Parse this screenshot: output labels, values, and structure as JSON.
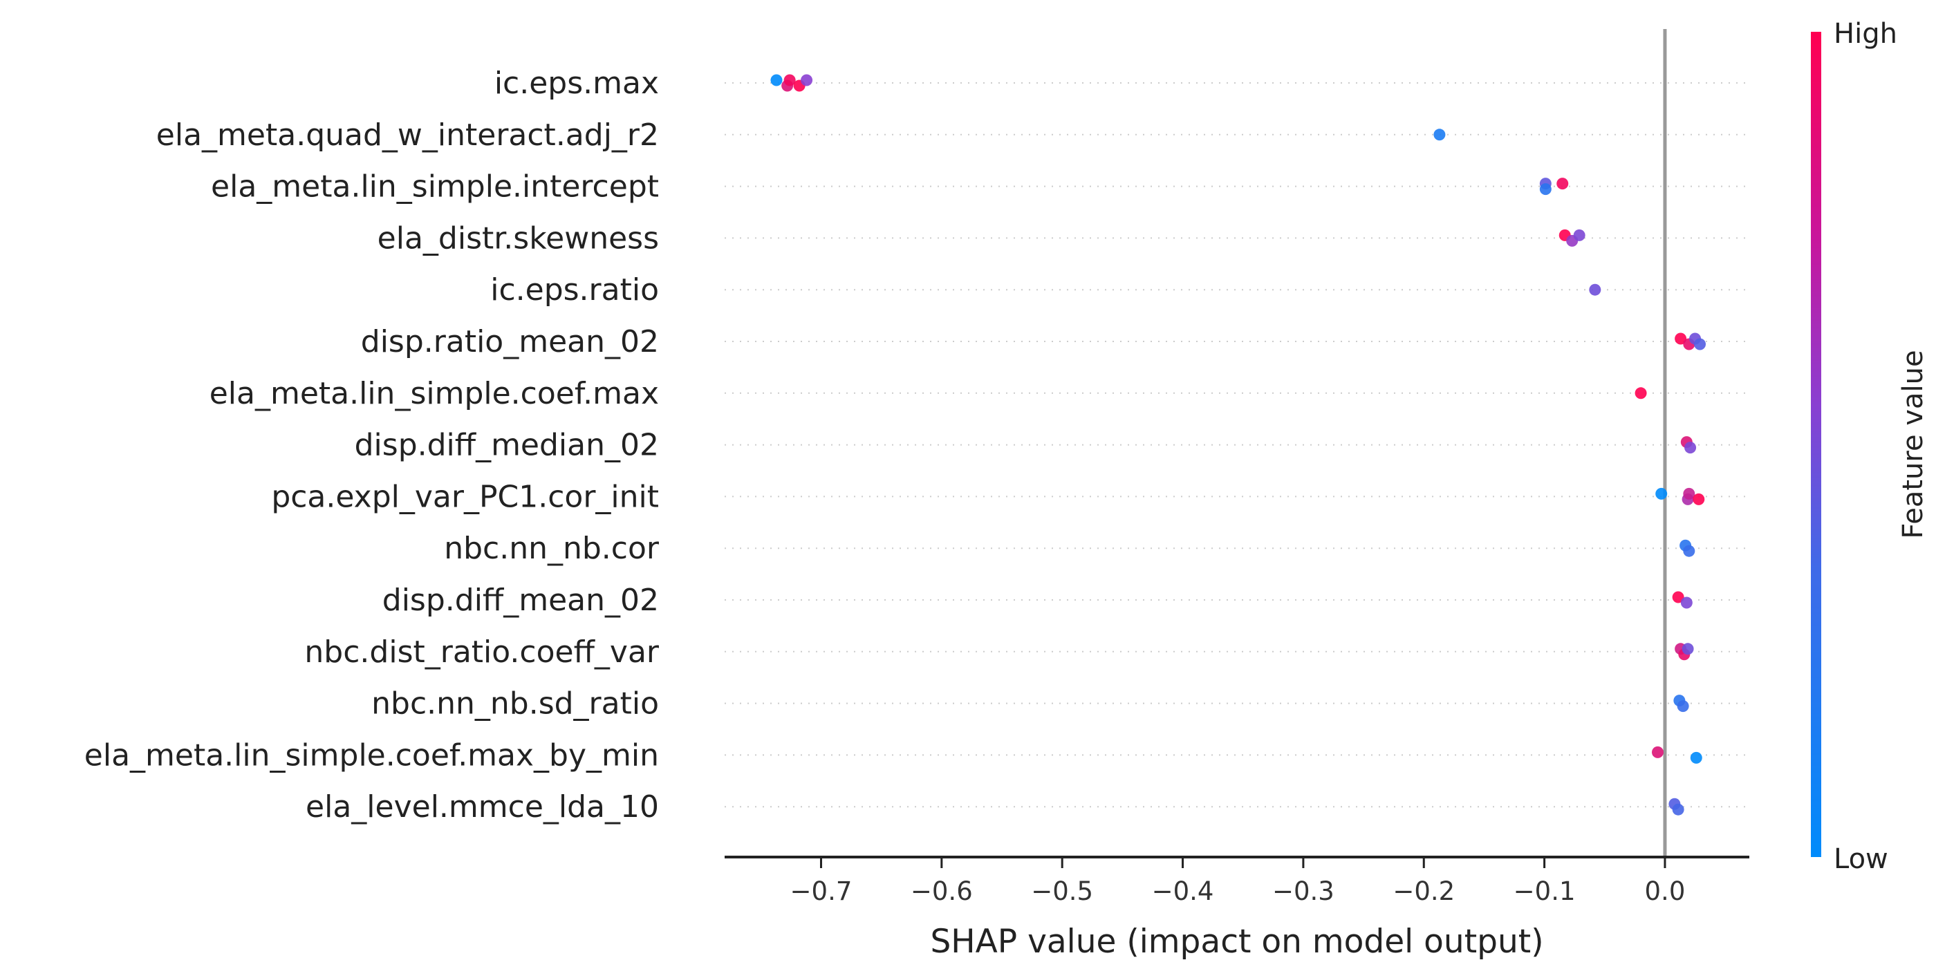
{
  "chart_data": {
    "type": "scatter",
    "xlabel": "SHAP value (impact on model output)",
    "xlim": [
      -0.78,
      0.07
    ],
    "xticks": [
      -0.7,
      -0.6,
      -0.5,
      -0.4,
      -0.3,
      -0.2,
      -0.1,
      0.0
    ],
    "xtick_labels": [
      "−0.7",
      "−0.6",
      "−0.5",
      "−0.4",
      "−0.3",
      "−0.2",
      "−0.1",
      "0.0"
    ],
    "zero_line": 0.0,
    "grid": "dotted horizontal per feature",
    "colorbar": {
      "title": "Feature value",
      "high_label": "High",
      "low_label": "Low",
      "low_color": "#1e88e5",
      "high_color": "#ff0d57",
      "mid_color": "#7b5cd6"
    },
    "features": [
      {
        "name": "ic.eps.max",
        "points": [
          [
            -0.737,
            0.0
          ],
          [
            -0.728,
            0.85
          ],
          [
            -0.726,
            0.95
          ],
          [
            -0.718,
            1.0
          ],
          [
            -0.712,
            0.5
          ]
        ]
      },
      {
        "name": "ela_meta.quad_w_interact.adj_r2",
        "points": [
          [
            -0.187,
            0.1
          ]
        ]
      },
      {
        "name": "ela_meta.lin_simple.intercept",
        "points": [
          [
            -0.099,
            0.35
          ],
          [
            -0.099,
            0.15
          ],
          [
            -0.085,
            0.95
          ]
        ]
      },
      {
        "name": "ela_distr.skewness",
        "points": [
          [
            -0.083,
            1.0
          ],
          [
            -0.077,
            0.55
          ],
          [
            -0.071,
            0.45
          ]
        ]
      },
      {
        "name": "ic.eps.ratio",
        "points": [
          [
            -0.058,
            0.4
          ]
        ]
      },
      {
        "name": "disp.ratio_mean_02",
        "points": [
          [
            0.013,
            1.0
          ],
          [
            0.02,
            0.9
          ],
          [
            0.025,
            0.4
          ],
          [
            0.029,
            0.3
          ]
        ]
      },
      {
        "name": "ela_meta.lin_simple.coef.max",
        "points": [
          [
            -0.02,
            1.0
          ]
        ]
      },
      {
        "name": "disp.diff_median_02",
        "points": [
          [
            0.018,
            0.85
          ],
          [
            0.021,
            0.45
          ]
        ]
      },
      {
        "name": "pca.expl_var_PC1.cor_init",
        "points": [
          [
            -0.003,
            0.0
          ],
          [
            0.019,
            0.65
          ],
          [
            0.02,
            0.75
          ],
          [
            0.028,
            1.0
          ]
        ]
      },
      {
        "name": "nbc.nn_nb.cor",
        "points": [
          [
            0.017,
            0.15
          ],
          [
            0.02,
            0.2
          ]
        ]
      },
      {
        "name": "disp.diff_mean_02",
        "points": [
          [
            0.011,
            1.0
          ],
          [
            0.018,
            0.45
          ]
        ]
      },
      {
        "name": "nbc.dist_ratio.coeff_var",
        "points": [
          [
            0.013,
            0.8
          ],
          [
            0.016,
            0.9
          ],
          [
            0.019,
            0.4
          ]
        ]
      },
      {
        "name": "nbc.nn_nb.sd_ratio",
        "points": [
          [
            0.012,
            0.15
          ],
          [
            0.015,
            0.2
          ]
        ]
      },
      {
        "name": "ela_meta.lin_simple.coef.max_by_min",
        "points": [
          [
            -0.006,
            0.85
          ],
          [
            0.026,
            0.0
          ]
        ]
      },
      {
        "name": "ela_level.mmce_lda_10",
        "points": [
          [
            0.008,
            0.3
          ],
          [
            0.011,
            0.25
          ]
        ]
      }
    ]
  }
}
